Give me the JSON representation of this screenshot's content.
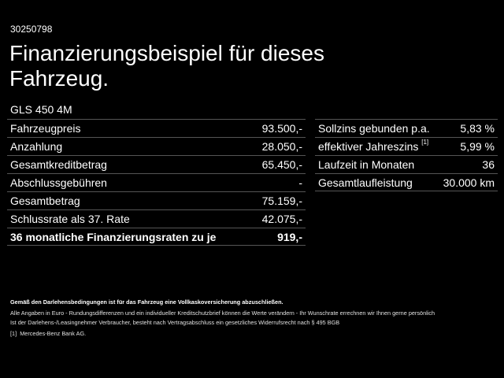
{
  "reference_id": "30250798",
  "title": "Finanzierungsbeispiel für dieses Fahrzeug.",
  "model": "GLS 450 4M",
  "left_table": {
    "rows": [
      {
        "label": "Fahrzeugpreis",
        "value": "93.500,-"
      },
      {
        "label": "Anzahlung",
        "value": "28.050,-"
      },
      {
        "label": "Gesamtkreditbetrag",
        "value": "65.450,-"
      },
      {
        "label": "Abschlussgebühren",
        "value": "-"
      },
      {
        "label": "Gesamtbetrag",
        "value": "75.159,-"
      },
      {
        "label": "Schlussrate als 37. Rate",
        "value": "42.075,-"
      },
      {
        "label": "36 monatliche Finanzierungsraten zu je",
        "value": "919,-",
        "bold": true
      }
    ]
  },
  "right_table": {
    "rows": [
      {
        "label": "Sollzins gebunden p.a.",
        "value": "5,83 %"
      },
      {
        "label": "effektiver Jahreszins",
        "footnote": "[1]",
        "value": "5,99 %"
      },
      {
        "label": "Laufzeit in Monaten",
        "value": "36"
      },
      {
        "label": "Gesamtlaufleistung",
        "value": "30.000 km"
      }
    ]
  },
  "notes": {
    "insurance": "Gemäß den Darlehensbedingungen ist für das Fahrzeug eine Vollkaskoversicherung abzuschließen.",
    "line1": "Alle Angaben in Euro - Rundungsdifferenzen und ein individueller Kreditschutzbrief können die Werte verändern - Ihr Wunschrate errechnen wir Ihnen gerne persönlich",
    "line2": "Ist der Darlehens-/Leasingnehmer Verbraucher, besteht nach Vertragsabschluss ein gesetzliches Widerrufsrecht nach § 495 BGB",
    "footnote_marker": "[1]",
    "footnote_text": "Mercedes-Benz Bank AG."
  }
}
